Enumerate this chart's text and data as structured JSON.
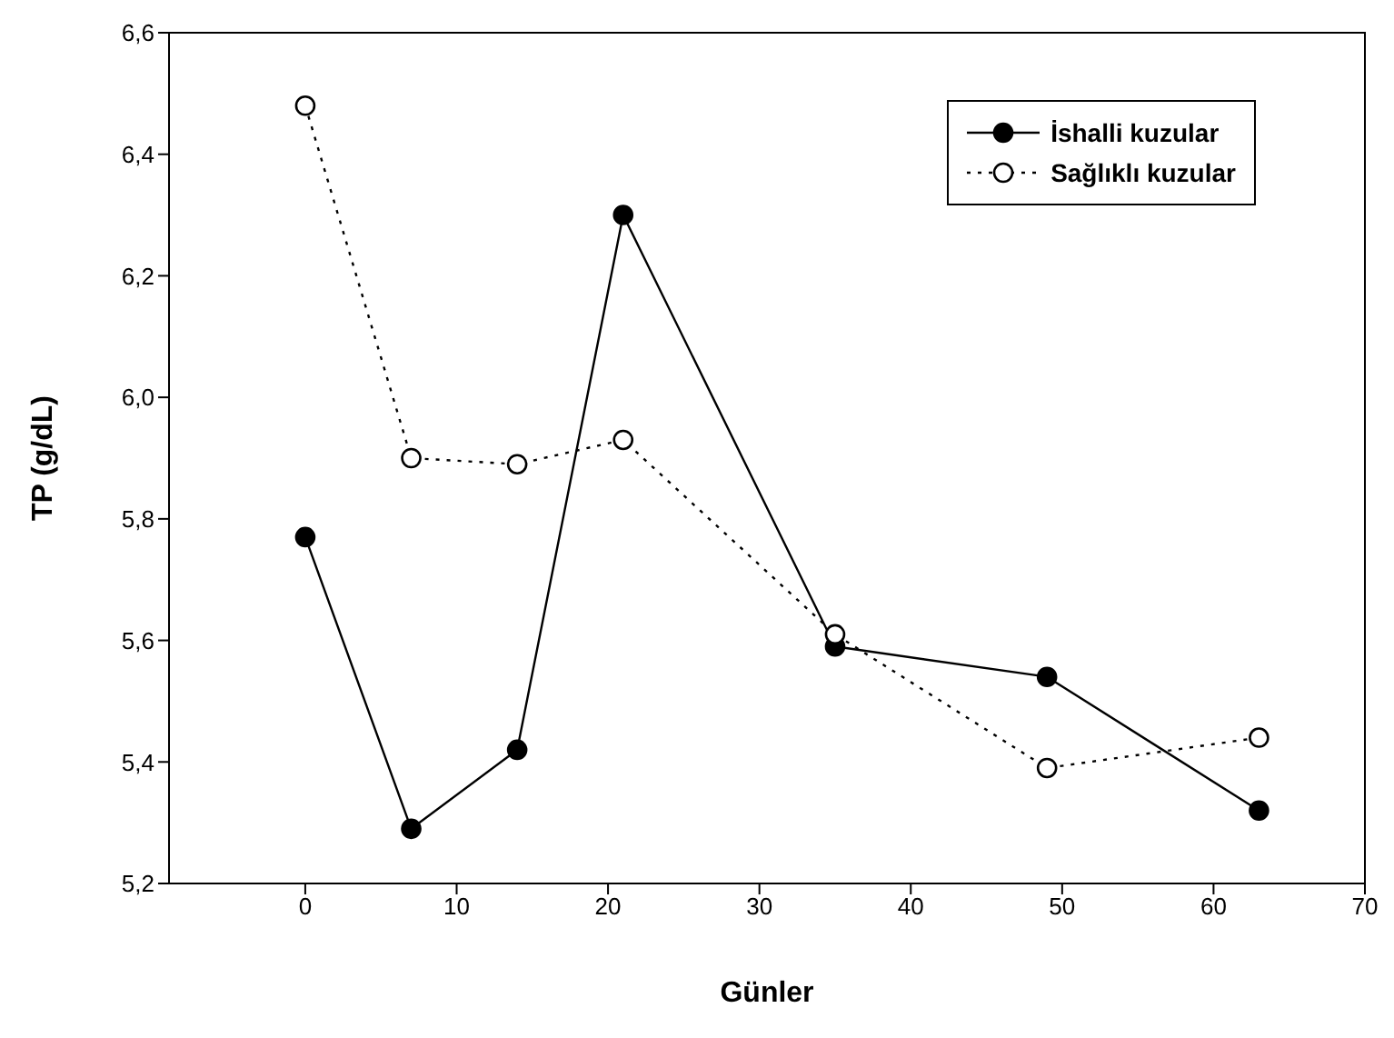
{
  "chart_data": {
    "type": "line",
    "xlabel": "Günler",
    "ylabel": "TP (g/dL)",
    "xlim": [
      -9,
      70
    ],
    "xticks": [
      0,
      10,
      20,
      30,
      40,
      50,
      60,
      70
    ],
    "ylim": [
      5.2,
      6.6
    ],
    "yticks": [
      {
        "value": 5.2,
        "label": "5,2"
      },
      {
        "value": 5.4,
        "label": "5,4"
      },
      {
        "value": 5.6,
        "label": "5,6"
      },
      {
        "value": 5.8,
        "label": "5,8"
      },
      {
        "value": 6.0,
        "label": "6,0"
      },
      {
        "value": 6.2,
        "label": "6,2"
      },
      {
        "value": 6.4,
        "label": "6,4"
      },
      {
        "value": 6.6,
        "label": "6,6"
      }
    ],
    "x": [
      0,
      7,
      14,
      21,
      35,
      49,
      63
    ],
    "series": [
      {
        "name": "İshalli kuzular",
        "color": "#000000",
        "line_style": "solid",
        "values": [
          5.77,
          5.29,
          5.42,
          6.3,
          5.59,
          5.54,
          5.32
        ]
      },
      {
        "name": "Sağlıklı kuzular",
        "color": "#000000",
        "line_style": "dotted",
        "values": [
          6.48,
          5.9,
          5.89,
          5.93,
          5.61,
          5.39,
          5.44
        ]
      }
    ],
    "marker": "circle",
    "grid": false,
    "legend": "top right"
  }
}
